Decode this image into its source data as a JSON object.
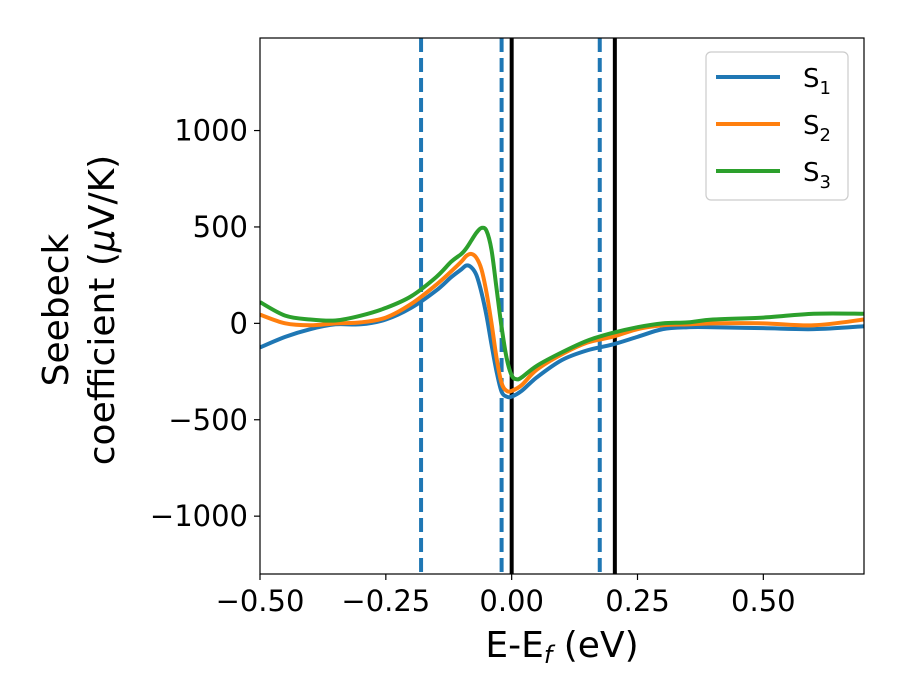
{
  "chart_data": {
    "type": "line",
    "xlabel": {
      "main": "E-E",
      "sub": "f",
      "unit": " (eV)"
    },
    "ylabel": {
      "line1": "Seebeck",
      "line2": "coefficient  (",
      "mu": "μ",
      "line2_end": "V/K)"
    },
    "xlim": [
      -0.5,
      0.7
    ],
    "ylim": [
      -1300,
      1480
    ],
    "x_ticks": [
      -0.5,
      -0.25,
      0.0,
      0.25,
      0.5
    ],
    "x_tick_labels": [
      "−0.50",
      "−0.25",
      "0.00",
      "0.25",
      "0.50"
    ],
    "y_ticks": [
      1000,
      500,
      0,
      -500,
      -1000
    ],
    "y_tick_labels": [
      "1000",
      "500",
      "0",
      "−500",
      "−1000"
    ],
    "legend": {
      "position": "top-right"
    },
    "series": [
      {
        "name": "S",
        "sub": "1",
        "color": "#1f77b4",
        "x": [
          -0.5,
          -0.45,
          -0.4,
          -0.35,
          -0.3,
          -0.25,
          -0.2,
          -0.15,
          -0.12,
          -0.1,
          -0.09,
          -0.08,
          -0.07,
          -0.06,
          -0.05,
          -0.04,
          -0.03,
          -0.02,
          -0.01,
          0.0,
          0.02,
          0.05,
          0.1,
          0.15,
          0.2,
          0.25,
          0.3,
          0.35,
          0.4,
          0.5,
          0.6,
          0.7
        ],
        "values": [
          -125,
          -70,
          -30,
          -5,
          -5,
          20,
          80,
          170,
          240,
          280,
          300,
          290,
          250,
          160,
          40,
          -110,
          -250,
          -355,
          -380,
          -380,
          -350,
          -280,
          -190,
          -140,
          -110,
          -70,
          -30,
          -20,
          -20,
          -25,
          -30,
          -15
        ]
      },
      {
        "name": "S",
        "sub": "2",
        "color": "#ff7f0e",
        "x": [
          -0.5,
          -0.45,
          -0.4,
          -0.35,
          -0.3,
          -0.25,
          -0.2,
          -0.15,
          -0.12,
          -0.1,
          -0.09,
          -0.08,
          -0.07,
          -0.06,
          -0.05,
          -0.04,
          -0.03,
          -0.02,
          -0.01,
          0.0,
          0.02,
          0.05,
          0.1,
          0.15,
          0.2,
          0.25,
          0.3,
          0.35,
          0.4,
          0.5,
          0.6,
          0.7
        ],
        "values": [
          45,
          0,
          -10,
          0,
          5,
          30,
          100,
          200,
          270,
          320,
          350,
          360,
          340,
          280,
          160,
          0,
          -180,
          -310,
          -350,
          -350,
          -320,
          -240,
          -160,
          -100,
          -70,
          -30,
          -10,
          -5,
          0,
          0,
          -10,
          20
        ]
      },
      {
        "name": "S",
        "sub": "3",
        "color": "#2ca02c",
        "x": [
          -0.5,
          -0.45,
          -0.4,
          -0.35,
          -0.3,
          -0.25,
          -0.2,
          -0.15,
          -0.12,
          -0.1,
          -0.09,
          -0.08,
          -0.07,
          -0.06,
          -0.05,
          -0.04,
          -0.03,
          -0.02,
          -0.01,
          0.0,
          0.01,
          0.02,
          0.05,
          0.1,
          0.15,
          0.2,
          0.25,
          0.3,
          0.35,
          0.4,
          0.5,
          0.6,
          0.7
        ],
        "values": [
          110,
          40,
          20,
          15,
          40,
          80,
          140,
          240,
          320,
          360,
          390,
          430,
          470,
          495,
          480,
          380,
          180,
          -20,
          -180,
          -270,
          -290,
          -280,
          -220,
          -150,
          -90,
          -50,
          -20,
          0,
          5,
          20,
          30,
          50,
          50
        ]
      }
    ],
    "vlines": [
      {
        "x": -0.18,
        "style": "dashed",
        "color": "#1f77b4"
      },
      {
        "x": -0.02,
        "style": "dashed",
        "color": "#1f77b4"
      },
      {
        "x": 0.175,
        "style": "dashed",
        "color": "#1f77b4"
      },
      {
        "x": 0.0,
        "style": "solid",
        "color": "#000000"
      },
      {
        "x": 0.205,
        "style": "solid",
        "color": "#000000"
      }
    ]
  }
}
